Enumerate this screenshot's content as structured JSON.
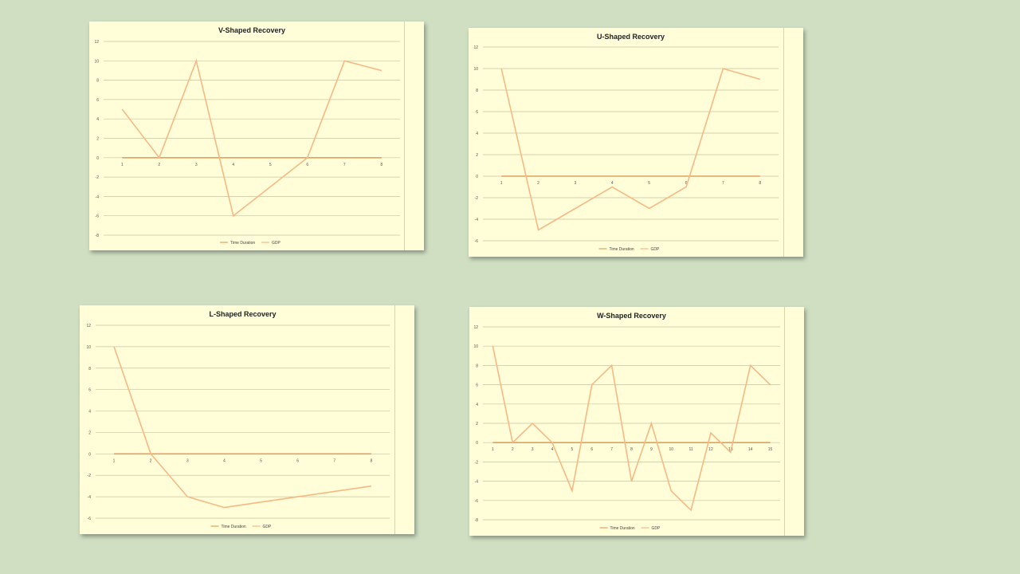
{
  "colors": {
    "background": "#d0dfc2",
    "chart_bg": "#fffed8",
    "gridline": "#c9c4a2",
    "time_duration": "#e0a060",
    "gdp": "#f6b985"
  },
  "chart_data": [
    {
      "type": "line",
      "title": "V-Shaped Recovery",
      "x": [
        1,
        2,
        3,
        4,
        5,
        6,
        7,
        8
      ],
      "yticks": [
        12,
        10,
        8,
        6,
        4,
        2,
        0,
        -2,
        -4,
        -6,
        -8
      ],
      "ylim": [
        -8,
        12
      ],
      "grid": true,
      "legend_position": "bottom",
      "series": [
        {
          "name": "Time Duration",
          "values": [
            0,
            0,
            0,
            0,
            0,
            0,
            0,
            0
          ]
        },
        {
          "name": "GDP",
          "values": [
            5,
            0,
            10,
            -6,
            -3,
            0,
            10,
            9
          ]
        }
      ]
    },
    {
      "type": "line",
      "title": "U-Shaped Recovery",
      "x": [
        1,
        2,
        3,
        4,
        5,
        6,
        7,
        8
      ],
      "yticks": [
        12,
        10,
        8,
        6,
        4,
        2,
        0,
        -2,
        -4,
        -6
      ],
      "ylim": [
        -6,
        12
      ],
      "grid": true,
      "legend_position": "bottom",
      "series": [
        {
          "name": "Time Duration",
          "values": [
            0,
            0,
            0,
            0,
            0,
            0,
            0,
            0
          ]
        },
        {
          "name": "GDP",
          "values": [
            10,
            -5,
            -3,
            -1,
            -3,
            -1,
            10,
            9
          ]
        }
      ]
    },
    {
      "type": "line",
      "title": "L-Shaped Recovery",
      "x": [
        1,
        2,
        3,
        4,
        5,
        6,
        7,
        8
      ],
      "yticks": [
        12,
        10,
        8,
        6,
        4,
        2,
        0,
        -2,
        -4,
        -6
      ],
      "ylim": [
        -6,
        12
      ],
      "grid": true,
      "legend_position": "bottom",
      "series": [
        {
          "name": "Time Duration",
          "values": [
            0,
            0,
            0,
            0,
            0,
            0,
            0,
            0
          ]
        },
        {
          "name": "GDP",
          "values": [
            10,
            0,
            -4,
            -5,
            -4.5,
            -4,
            -3.5,
            -3
          ]
        }
      ]
    },
    {
      "type": "line",
      "title": "W-Shaped Recovery",
      "x": [
        1,
        2,
        3,
        4,
        5,
        6,
        7,
        8,
        9,
        10,
        11,
        12,
        13,
        14,
        15
      ],
      "yticks": [
        12,
        10,
        8,
        6,
        4,
        2,
        0,
        -2,
        -4,
        -6,
        -8
      ],
      "ylim": [
        -8,
        12
      ],
      "grid": true,
      "legend_position": "bottom",
      "series": [
        {
          "name": "Time Duration",
          "values": [
            0,
            0,
            0,
            0,
            0,
            0,
            0,
            0,
            0,
            0,
            0,
            0,
            0,
            0,
            0
          ]
        },
        {
          "name": "GDP",
          "values": [
            10,
            0,
            2,
            0,
            -5,
            6,
            8,
            -4,
            2,
            -5,
            -7,
            1,
            -1,
            8,
            6
          ]
        }
      ]
    }
  ]
}
